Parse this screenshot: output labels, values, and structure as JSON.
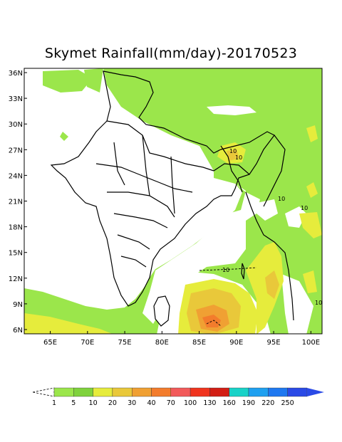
{
  "title": "Skymet Rainfall(mm/day)-20170523",
  "map": {
    "lat_labels": [
      "36N",
      "33N",
      "30N",
      "27N",
      "24N",
      "21N",
      "18N",
      "15N",
      "12N",
      "9N",
      "6N"
    ],
    "lat_values": [
      36,
      33,
      30,
      27,
      24,
      21,
      18,
      15,
      12,
      9,
      6
    ],
    "lon_labels": [
      "65E",
      "70E",
      "75E",
      "80E",
      "85E",
      "90E",
      "95E",
      "100E"
    ],
    "lon_values": [
      65,
      70,
      75,
      80,
      85,
      90,
      95,
      100
    ],
    "lon_range": [
      61.5,
      101.5
    ],
    "lat_range": [
      5.5,
      36.5
    ],
    "contour_labels": [
      "10",
      "10",
      "10",
      "10",
      "10",
      "10"
    ]
  },
  "legend": {
    "labels": [
      "1",
      "5",
      "10",
      "20",
      "30",
      "40",
      "70",
      "100",
      "130",
      "160",
      "190",
      "220",
      "250"
    ],
    "colors": [
      "#9be64b",
      "#7fd23c",
      "#e6ec3c",
      "#e9c83a",
      "#f0a033",
      "#f37c2c",
      "#f25a5a",
      "#f0341e",
      "#d21e14",
      "#18d2c8",
      "#1ea0f0",
      "#1e78f0",
      "#2a4ae6"
    ]
  }
}
